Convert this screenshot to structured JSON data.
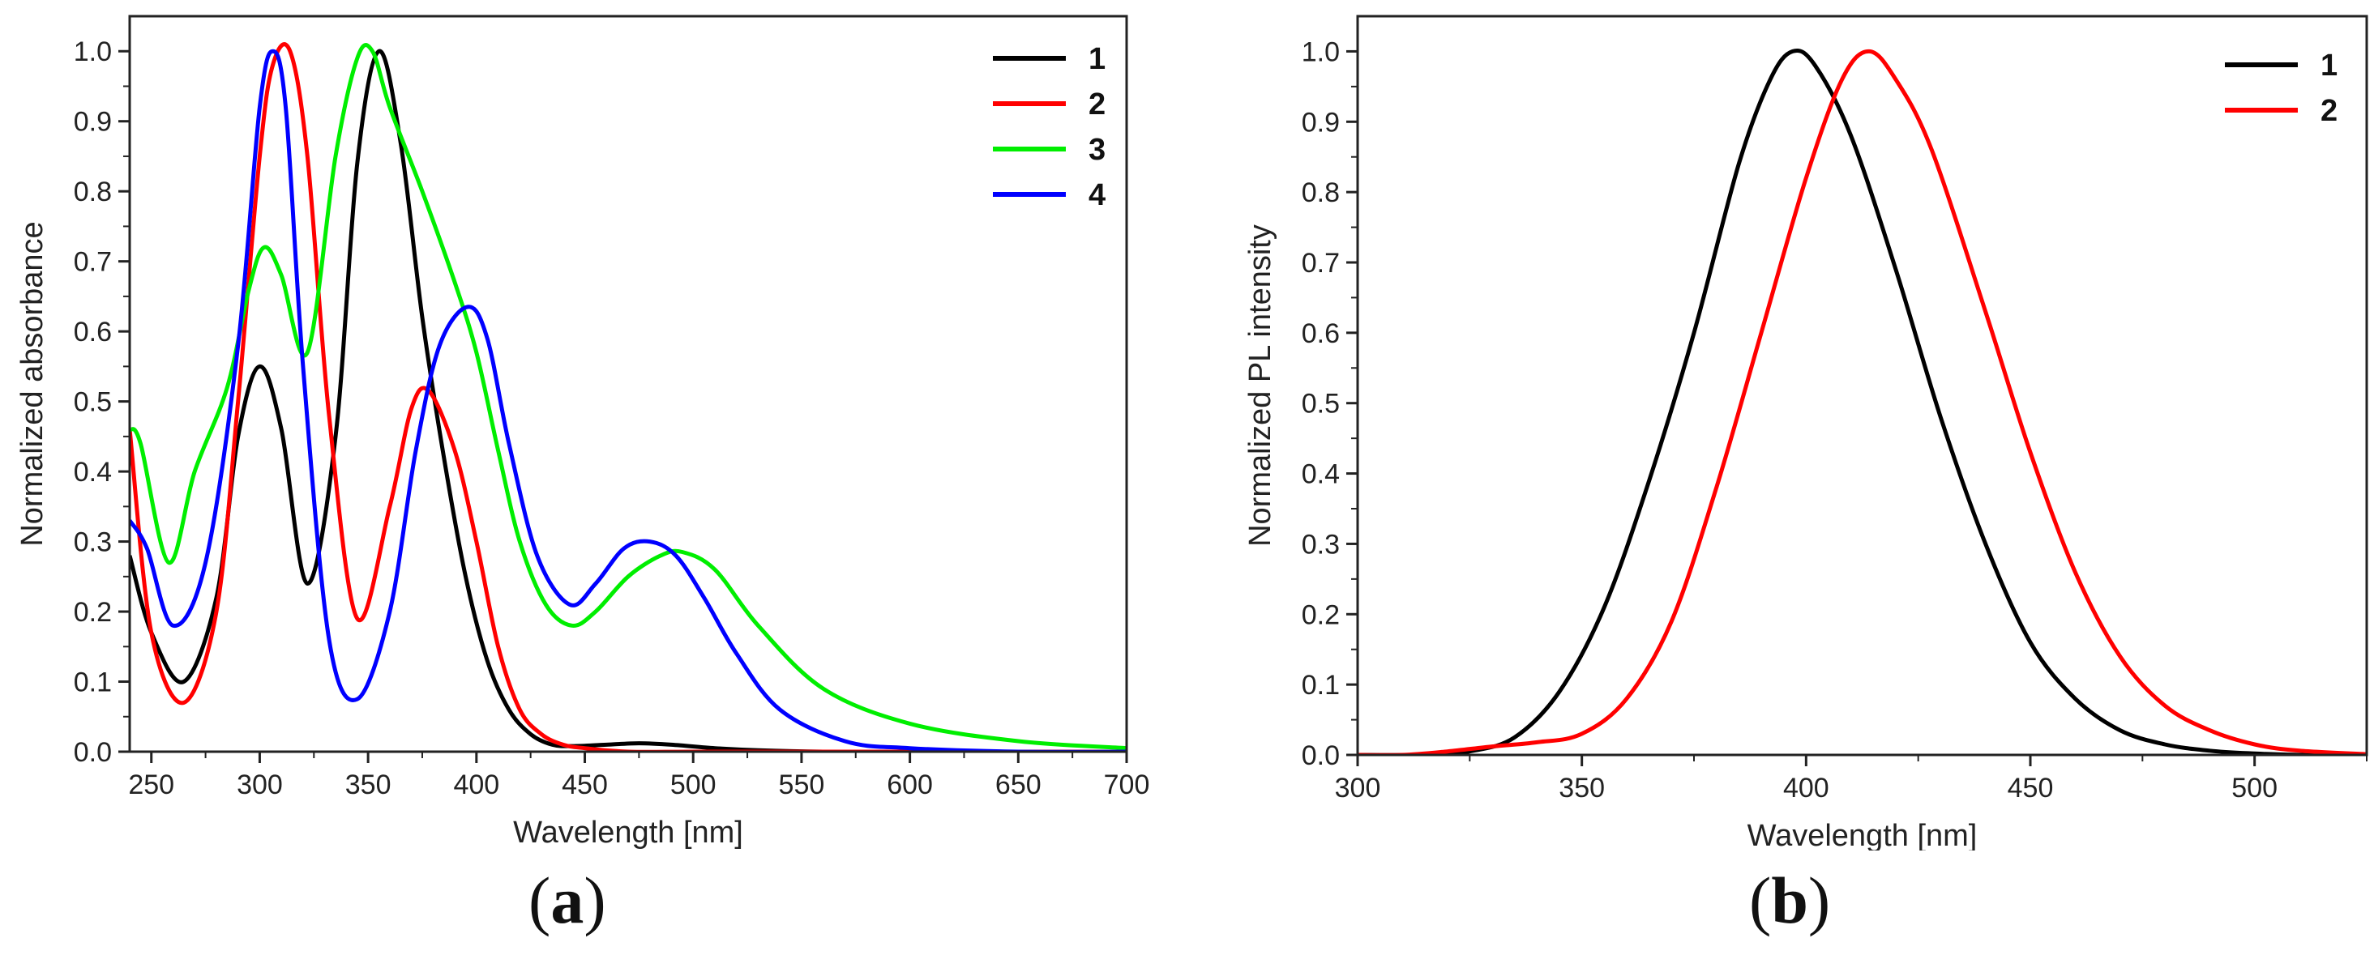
{
  "chart_data": [
    {
      "panel": "a",
      "caption_open": "(",
      "caption_letter": "a",
      "caption_close": ")",
      "type": "line",
      "title": "",
      "xlabel": "Wavelength [nm]",
      "ylabel": "Normalized absorbance",
      "xlim": [
        240,
        700
      ],
      "ylim": [
        0,
        1.05
      ],
      "xticks": [
        250,
        300,
        350,
        400,
        450,
        500,
        550,
        600,
        650,
        700
      ],
      "yticks": [
        0.0,
        0.1,
        0.2,
        0.3,
        0.4,
        0.5,
        0.6,
        0.7,
        0.8,
        0.9,
        1.0
      ],
      "legend_position": "top-right",
      "series": [
        {
          "name": "1",
          "color": "#000000",
          "x": [
            240,
            250,
            265,
            280,
            290,
            300,
            310,
            322,
            335,
            345,
            355,
            365,
            375,
            385,
            395,
            405,
            415,
            425,
            435,
            445,
            460,
            475,
            490,
            510,
            530,
            560,
            600,
            650,
            700
          ],
          "y": [
            0.28,
            0.17,
            0.1,
            0.22,
            0.45,
            0.55,
            0.46,
            0.24,
            0.45,
            0.84,
            1.0,
            0.87,
            0.62,
            0.42,
            0.25,
            0.13,
            0.06,
            0.025,
            0.01,
            0.008,
            0.01,
            0.012,
            0.01,
            0.005,
            0.002,
            0.0,
            0.0,
            0.0,
            0.0
          ]
        },
        {
          "name": "2",
          "color": "#ff0000",
          "x": [
            240,
            250,
            265,
            280,
            290,
            300,
            306,
            314,
            322,
            332,
            345,
            360,
            370,
            378,
            390,
            400,
            410,
            420,
            430,
            440,
            450,
            470,
            500,
            550,
            600,
            650,
            700
          ],
          "y": [
            0.46,
            0.17,
            0.07,
            0.2,
            0.5,
            0.85,
            0.98,
            1.0,
            0.85,
            0.48,
            0.19,
            0.35,
            0.49,
            0.515,
            0.43,
            0.3,
            0.15,
            0.06,
            0.025,
            0.01,
            0.005,
            0.0,
            0.0,
            0.0,
            0.0,
            0.0,
            0.0
          ]
        },
        {
          "name": "3",
          "color": "#00ee00",
          "x": [
            240,
            245,
            258,
            270,
            285,
            295,
            302,
            310,
            322,
            335,
            345,
            352,
            360,
            375,
            390,
            400,
            410,
            420,
            432,
            444,
            455,
            470,
            485,
            495,
            510,
            530,
            560,
            600,
            650,
            700
          ],
          "y": [
            0.46,
            0.44,
            0.27,
            0.4,
            0.52,
            0.66,
            0.72,
            0.68,
            0.57,
            0.85,
            0.99,
            1.0,
            0.92,
            0.8,
            0.67,
            0.57,
            0.43,
            0.3,
            0.21,
            0.18,
            0.2,
            0.25,
            0.28,
            0.285,
            0.26,
            0.18,
            0.09,
            0.04,
            0.015,
            0.005
          ]
        },
        {
          "name": "4",
          "color": "#0000ff",
          "x": [
            240,
            248,
            260,
            275,
            290,
            300,
            306,
            312,
            320,
            332,
            345,
            360,
            372,
            383,
            396,
            405,
            415,
            428,
            443,
            455,
            468,
            480,
            492,
            505,
            520,
            540,
            570,
            600,
            650,
            700
          ],
          "y": [
            0.33,
            0.29,
            0.18,
            0.27,
            0.58,
            0.92,
            1.0,
            0.92,
            0.55,
            0.16,
            0.075,
            0.2,
            0.43,
            0.58,
            0.635,
            0.59,
            0.44,
            0.28,
            0.21,
            0.24,
            0.29,
            0.3,
            0.28,
            0.22,
            0.14,
            0.06,
            0.015,
            0.005,
            0.0,
            0.0
          ]
        }
      ]
    },
    {
      "panel": "b",
      "caption_open": "(",
      "caption_letter": "b",
      "caption_close": ")",
      "type": "line",
      "title": "",
      "xlabel": "Wavelength [nm]",
      "ylabel": "Normalized PL intensity",
      "xlim": [
        300,
        525
      ],
      "ylim": [
        0,
        1.05
      ],
      "xticks": [
        300,
        350,
        400,
        450,
        500
      ],
      "yticks": [
        0.0,
        0.1,
        0.2,
        0.3,
        0.4,
        0.5,
        0.6,
        0.7,
        0.8,
        0.9,
        1.0
      ],
      "legend_position": "top-right",
      "series": [
        {
          "name": "1",
          "color": "#000000",
          "x": [
            300,
            315,
            325,
            335,
            345,
            355,
            365,
            375,
            385,
            392,
            397,
            402,
            410,
            420,
            430,
            440,
            450,
            460,
            470,
            480,
            490,
            500,
            510,
            525
          ],
          "y": [
            0.0,
            0.0,
            0.005,
            0.025,
            0.09,
            0.21,
            0.39,
            0.6,
            0.84,
            0.96,
            1.0,
            0.98,
            0.88,
            0.69,
            0.48,
            0.3,
            0.16,
            0.08,
            0.035,
            0.015,
            0.006,
            0.002,
            0.0,
            0.0
          ]
        },
        {
          "name": "2",
          "color": "#ff0000",
          "x": [
            300,
            310,
            320,
            330,
            340,
            350,
            360,
            370,
            380,
            390,
            400,
            408,
            414,
            420,
            428,
            440,
            450,
            460,
            470,
            480,
            490,
            500,
            510,
            525
          ],
          "y": [
            0.0,
            0.0,
            0.005,
            0.012,
            0.018,
            0.03,
            0.08,
            0.19,
            0.38,
            0.6,
            0.82,
            0.96,
            1.0,
            0.96,
            0.86,
            0.63,
            0.43,
            0.26,
            0.14,
            0.07,
            0.035,
            0.015,
            0.006,
            0.001
          ]
        }
      ]
    }
  ]
}
